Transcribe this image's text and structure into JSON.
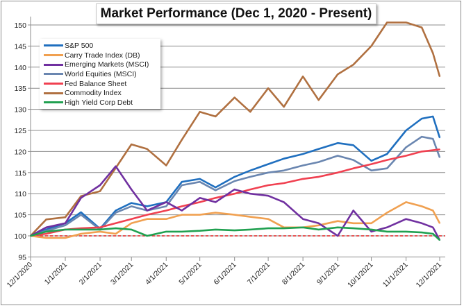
{
  "chart_data": {
    "type": "line",
    "title": "Market Performance (Dec 1, 2020 - Present)",
    "xlabel": "",
    "ylabel": "",
    "ylim": [
      95,
      152
    ],
    "yticks": [
      95,
      100,
      105,
      110,
      115,
      120,
      125,
      130,
      135,
      140,
      145,
      150
    ],
    "xticks": [
      "12/1/2020",
      "1/1/2021",
      "2/1/2021",
      "3/1/2021",
      "4/1/2021",
      "5/1/2021",
      "6/1/2021",
      "7/1/2021",
      "8/1/2021",
      "9/1/2021",
      "10/1/2021",
      "11/1/2021",
      "12/1/2021"
    ],
    "grid": "horizontal",
    "legend_position": "top-left",
    "baseline": {
      "value": 100,
      "color": "#e02020",
      "style": "dashed"
    },
    "x": [
      "2020-12-01",
      "2020-12-15",
      "2021-01-01",
      "2021-01-15",
      "2021-02-01",
      "2021-02-15",
      "2021-03-01",
      "2021-03-15",
      "2021-04-01",
      "2021-04-15",
      "2021-05-01",
      "2021-05-15",
      "2021-06-01",
      "2021-06-15",
      "2021-07-01",
      "2021-07-15",
      "2021-08-01",
      "2021-08-15",
      "2021-09-01",
      "2021-09-15",
      "2021-10-01",
      "2021-10-15",
      "2021-11-01",
      "2021-11-15",
      "2021-11-25",
      "2021-12-01"
    ],
    "series": [
      {
        "name": "S&P 500",
        "color": "#1f6fbf",
        "values": [
          100,
          101.5,
          103,
          105.6,
          101.7,
          106,
          107.8,
          107,
          108,
          112.8,
          113.5,
          111.5,
          114,
          115.5,
          117,
          118.3,
          119.4,
          120.6,
          122,
          121.5,
          117.8,
          119.4,
          125,
          127.8,
          128.3,
          123.3
        ]
      },
      {
        "name": "Carry Trade Index (DB)",
        "color": "#f0a050",
        "values": [
          100,
          99.5,
          99.5,
          100.5,
          101,
          100.5,
          103,
          104,
          104,
          105,
          105,
          105.5,
          105,
          104.5,
          104,
          102,
          102,
          102.5,
          103.5,
          103,
          103,
          105.5,
          108,
          107,
          106,
          103
        ]
      },
      {
        "name": "Emerging Markets (MSCI)",
        "color": "#7030a0",
        "values": [
          100,
          102,
          103,
          109,
          112,
          116.5,
          111,
          106,
          108,
          106,
          109,
          108,
          111,
          110,
          109.5,
          108,
          104,
          103,
          100,
          106,
          101,
          102,
          104,
          103,
          102,
          99
        ]
      },
      {
        "name": "World Equities (MSCI)",
        "color": "#6a86b0",
        "values": [
          100,
          101.2,
          102.5,
          105,
          101.5,
          105.5,
          107,
          106,
          107,
          112,
          112.8,
          110.8,
          113,
          114,
          115,
          115.5,
          116.7,
          117.5,
          119,
          118,
          115.5,
          116,
          121,
          123.5,
          123,
          118.6
        ]
      },
      {
        "name": "Fed Balance Sheet",
        "color": "#f04050",
        "values": [
          100,
          100.5,
          101.5,
          101.8,
          102,
          103,
          104,
          105,
          106,
          107,
          108,
          109,
          110,
          111,
          112,
          112.5,
          113.5,
          114,
          115,
          116,
          117,
          118,
          119,
          120,
          120.3,
          120.5
        ]
      },
      {
        "name": "Commodity Index",
        "color": "#b07040",
        "values": [
          100,
          103.9,
          104.4,
          109.4,
          110.6,
          116.1,
          121.7,
          120.6,
          116.7,
          122.8,
          129.4,
          128.3,
          132.8,
          129.4,
          135,
          130.6,
          137.8,
          132.2,
          138.3,
          140.6,
          145,
          150.6,
          150.6,
          149.4,
          143.3,
          137.8
        ]
      },
      {
        "name": "High Yield Corp Debt",
        "color": "#20a050",
        "values": [
          100,
          101,
          101.5,
          101.5,
          101.5,
          101.8,
          101.5,
          100,
          101,
          101,
          101.2,
          101.5,
          101.3,
          101.5,
          101.8,
          101.8,
          102,
          101.5,
          102,
          101.8,
          101.5,
          101,
          101,
          100.8,
          100.5,
          99
        ]
      }
    ]
  }
}
